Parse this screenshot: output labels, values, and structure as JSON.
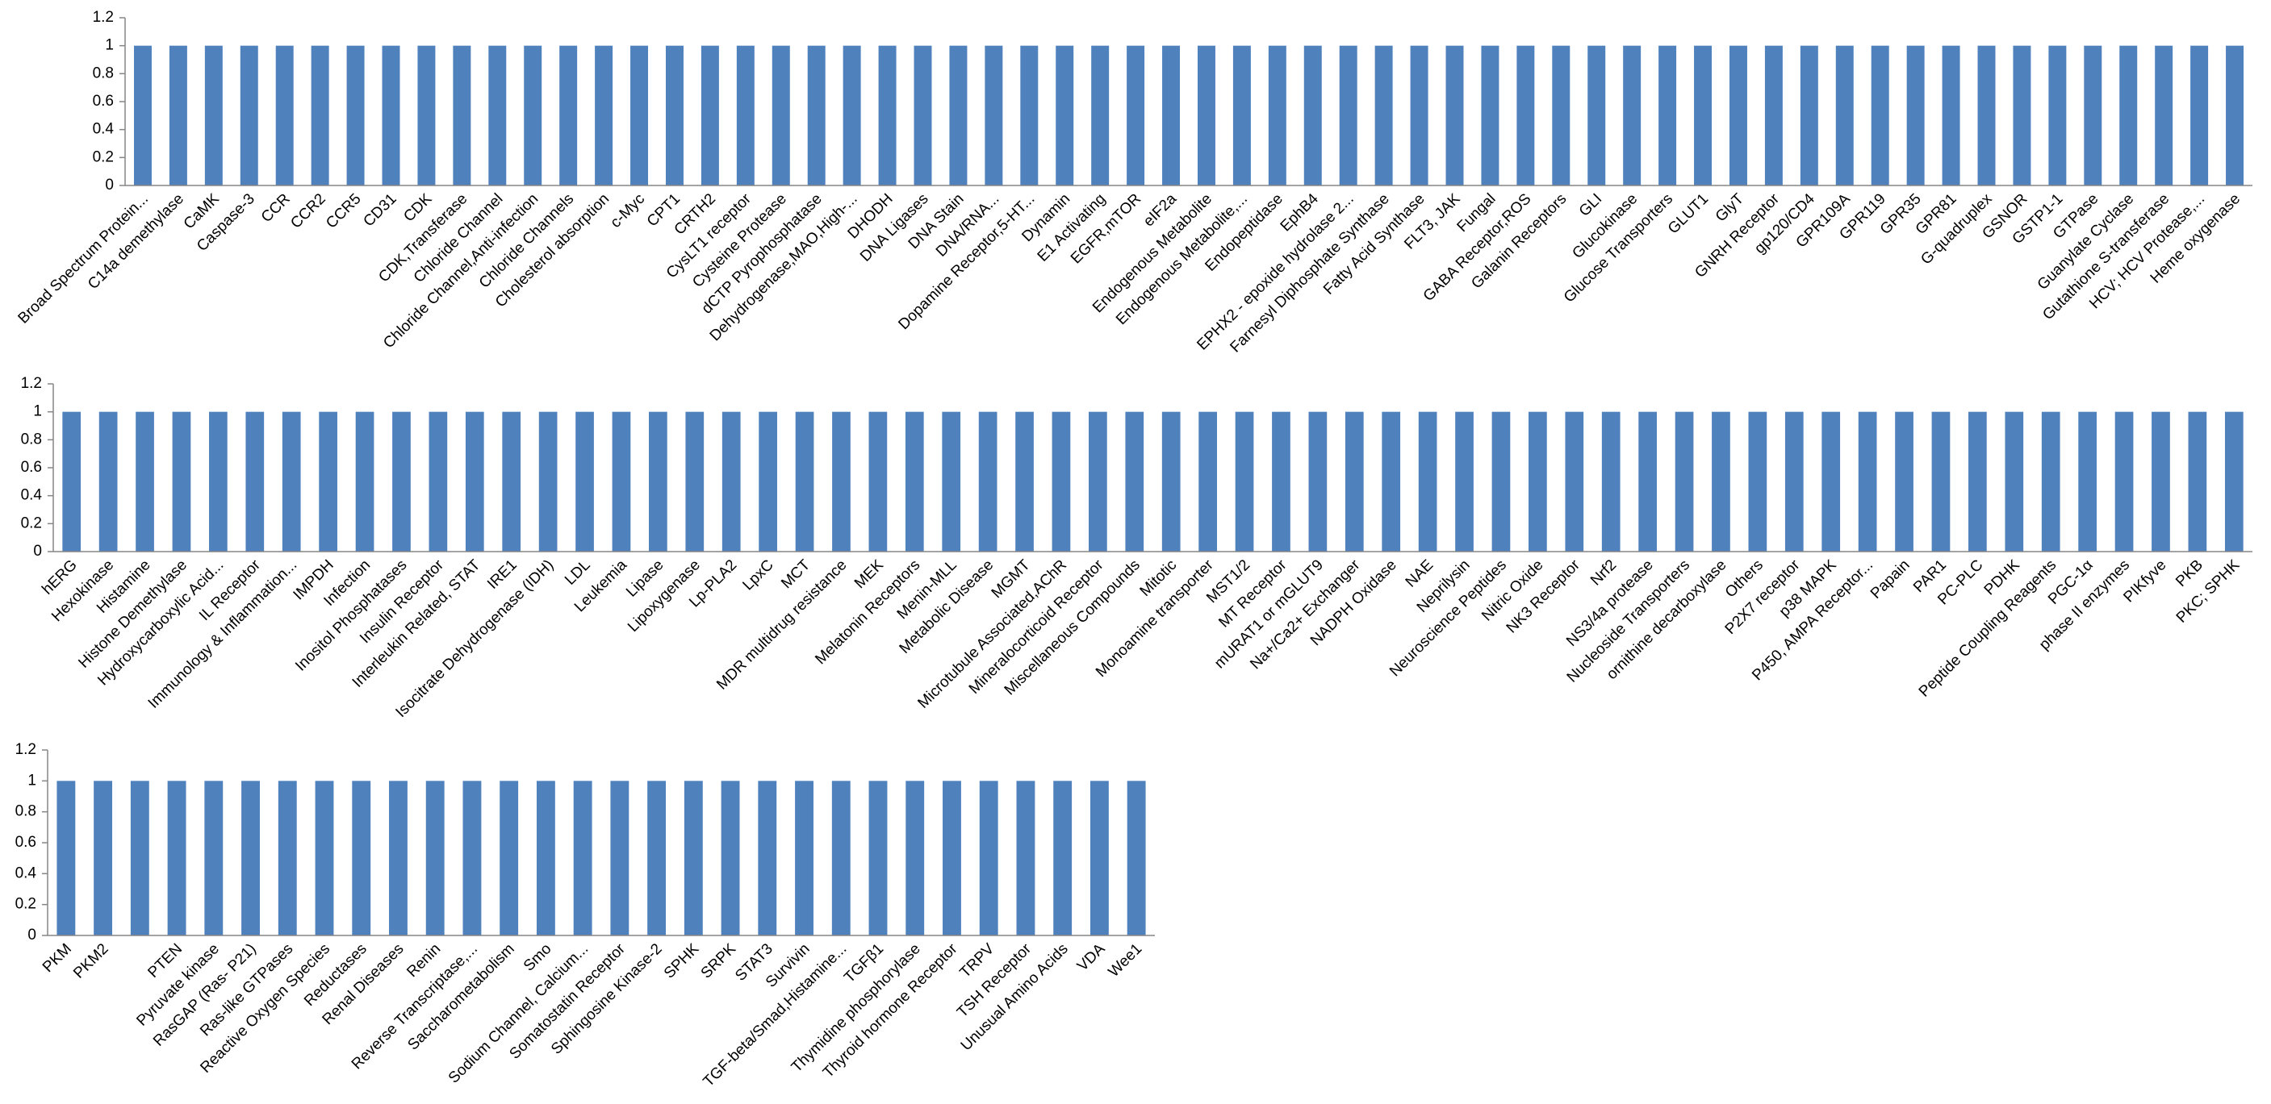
{
  "chart_data": [
    {
      "type": "bar",
      "color": "#4f81bd",
      "ylim": [
        0,
        1.2
      ],
      "yticks": [
        0,
        0.2,
        0.4,
        0.6,
        0.8,
        1,
        1.2
      ],
      "categories": [
        "Broad Spectrum Protein...",
        "C14a demethylase",
        "CaMK",
        "Caspase-3",
        "CCR",
        "CCR2",
        "CCR5",
        "CD31",
        "CDK",
        "CDK,Transferase",
        "Chloride Channel",
        "Chloride Channel,Anti-infection",
        "Chloride Channels",
        "Cholesterol absorption",
        "c-Myc",
        "CPT1",
        "CRTH2",
        "CysLT1 receptor",
        "Cysteine Protease",
        "dCTP Pyrophosphatase",
        "Dehydrogenase,MAO,High-...",
        "DHODH",
        "DNA Ligases",
        "DNA Stain",
        "DNA/RNA...",
        "Dopamine Receptor,5-HT...",
        "Dynamin",
        "E1 Activating",
        "EGFR,mTOR",
        "eIF2a",
        "Endogenous Metabolite",
        "Endogenous Metabolite,...",
        "Endopeptidase",
        "EphB4",
        "EPHX2 - epoxide hydrolase 2...",
        "Farnesyl Diphosphate Synthase",
        "Fatty Acid Synthase",
        "FLT3, JAK",
        "Fungal",
        "GABA Receptor,ROS",
        "Galanin Receptors",
        "GLI",
        "Glucokinase",
        "Glucose Transporters",
        "GLUT1",
        "GlyT",
        "GNRH Receptor",
        "gp120/CD4",
        "GPR109A",
        "GPR119",
        "GPR35",
        "GPR81",
        "G-quadruplex",
        "GSNOR",
        "GSTP1-1",
        "GTPase",
        "Guanylate Cyclase",
        "Gutathione S-transferase",
        "HCV; HCV Protease,...",
        "Heme oxygenase"
      ],
      "values": [
        1,
        1,
        1,
        1,
        1,
        1,
        1,
        1,
        1,
        1,
        1,
        1,
        1,
        1,
        1,
        1,
        1,
        1,
        1,
        1,
        1,
        1,
        1,
        1,
        1,
        1,
        1,
        1,
        1,
        1,
        1,
        1,
        1,
        1,
        1,
        1,
        1,
        1,
        1,
        1,
        1,
        1,
        1,
        1,
        1,
        1,
        1,
        1,
        1,
        1,
        1,
        1,
        1,
        1,
        1,
        1,
        1,
        1,
        1,
        1
      ]
    },
    {
      "type": "bar",
      "color": "#4f81bd",
      "ylim": [
        0,
        1.2
      ],
      "yticks": [
        0,
        0.2,
        0.4,
        0.6,
        0.8,
        1,
        1.2
      ],
      "categories": [
        "hERG",
        "Hexokinase",
        "Histamine",
        "Histone Demethylase",
        "Hydroxycarboxylic Acid...",
        "IL Receptor",
        "Immunology & Inflammation...",
        "IMPDH",
        "Infection",
        "Inositol Phosphatases",
        "Insulin Receptor",
        "Interleukin Related, STAT",
        "IRE1",
        "Isocitrate Dehydrogenase (IDH)",
        "LDL",
        "Leukemia",
        "Lipase",
        "Lipoxygenase",
        "Lp-PLA2",
        "LpxC",
        "MCT",
        "MDR multidrug resistance",
        "MEK",
        "Melatonin Receptors",
        "Menin-MLL",
        "Metabolic Disease",
        "MGMT",
        "Microtubule Associated,AChR",
        "Mineralocorticoid Receptor",
        "Miscellaneous Compounds",
        "Mitotic",
        "Monoamine transporter",
        "MST1/2",
        "MT Receptor",
        "mURAT1 or mGLUT9",
        "Na+/Ca2+ Exchanger",
        "NADPH Oxidase",
        "NAE",
        "Neprilysin",
        "Neuroscience Peptides",
        "Nitric Oxide",
        "NK3 Receptor",
        "Nrf2",
        "NS3/4a protease",
        "Nucleoside Transporters",
        "ornithine decarboxylase",
        "Others",
        "P2X7 receptor",
        "p38 MAPK",
        "P450, AMPA Receptor...",
        "Papain",
        "PAR1",
        "PC-PLC",
        "PDHK",
        "Peptide Coupling Reagents",
        "PGC-1α",
        "phase II enzymes",
        "PIKfyve",
        "PKB",
        "PKC; SPHK"
      ],
      "values": [
        1,
        1,
        1,
        1,
        1,
        1,
        1,
        1,
        1,
        1,
        1,
        1,
        1,
        1,
        1,
        1,
        1,
        1,
        1,
        1,
        1,
        1,
        1,
        1,
        1,
        1,
        1,
        1,
        1,
        1,
        1,
        1,
        1,
        1,
        1,
        1,
        1,
        1,
        1,
        1,
        1,
        1,
        1,
        1,
        1,
        1,
        1,
        1,
        1,
        1,
        1,
        1,
        1,
        1,
        1,
        1,
        1,
        1,
        1,
        1
      ]
    },
    {
      "type": "bar",
      "color": "#4f81bd",
      "ylim": [
        0,
        1.2
      ],
      "yticks": [
        0,
        0.2,
        0.4,
        0.6,
        0.8,
        1,
        1.2
      ],
      "categories": [
        "PKM",
        "PKM2",
        null,
        "PTEN",
        "Pyruvate kinase",
        "RasGAP (Ras- P21)",
        "Ras-like GTPases",
        "Reactive Oxygen Species",
        "Reductases",
        "Renal Diseases",
        "Renin",
        "Reverse Transcriptase,...",
        "Saccharometabolism",
        "Smo",
        "Sodium Channel, Calcium...",
        "Somatostatin Receptor",
        "Sphingosine Kinase-2",
        "SPHK",
        "SRPK",
        "STAT3",
        "Survivin",
        "TGF-beta/Smad,Histamine...",
        "TGFβ1",
        "Thymidine phosphorylase",
        "Thyroid hormone Receptor",
        "TRPV",
        "TSH Receptor",
        "Unusual Amino Acids",
        "VDA",
        "Wee1"
      ],
      "values": [
        1,
        1,
        1,
        1,
        1,
        1,
        1,
        1,
        1,
        1,
        1,
        1,
        1,
        1,
        1,
        1,
        1,
        1,
        1,
        1,
        1,
        1,
        1,
        1,
        1,
        1,
        1,
        1,
        1,
        1
      ]
    }
  ]
}
